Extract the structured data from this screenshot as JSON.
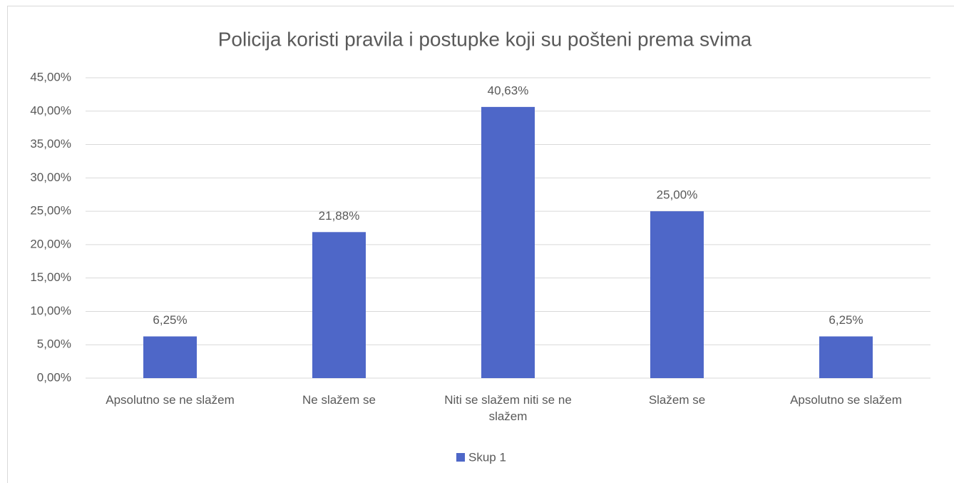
{
  "chart_data": {
    "type": "bar",
    "title": "Policija koristi pravila i postupke koji su pošteni prema svima",
    "categories": [
      "Apsolutno se ne slažem",
      "Ne slažem se",
      "Niti se slažem niti se ne slažem",
      "Slažem se",
      "Apsolutno se slažem"
    ],
    "series": [
      {
        "name": "Skup 1",
        "color": "#4e67c8",
        "values": [
          6.25,
          21.88,
          40.63,
          25,
          6.25
        ],
        "value_labels": [
          "6,25%",
          "21,88%",
          "40,63%",
          "25,00%",
          "6,25%"
        ]
      }
    ],
    "ylim": [
      0,
      45
    ],
    "yticks": [
      {
        "value": 0,
        "label": "0,00%"
      },
      {
        "value": 5,
        "label": "5,00%"
      },
      {
        "value": 10,
        "label": "10,00%"
      },
      {
        "value": 15,
        "label": "15,00%"
      },
      {
        "value": 20,
        "label": "20,00%"
      },
      {
        "value": 25,
        "label": "25,00%"
      },
      {
        "value": 30,
        "label": "30,00%"
      },
      {
        "value": 35,
        "label": "35,00%"
      },
      {
        "value": 40,
        "label": "40,00%"
      },
      {
        "value": 45,
        "label": "45,00%"
      }
    ],
    "grid": true,
    "legend": "bottom"
  }
}
